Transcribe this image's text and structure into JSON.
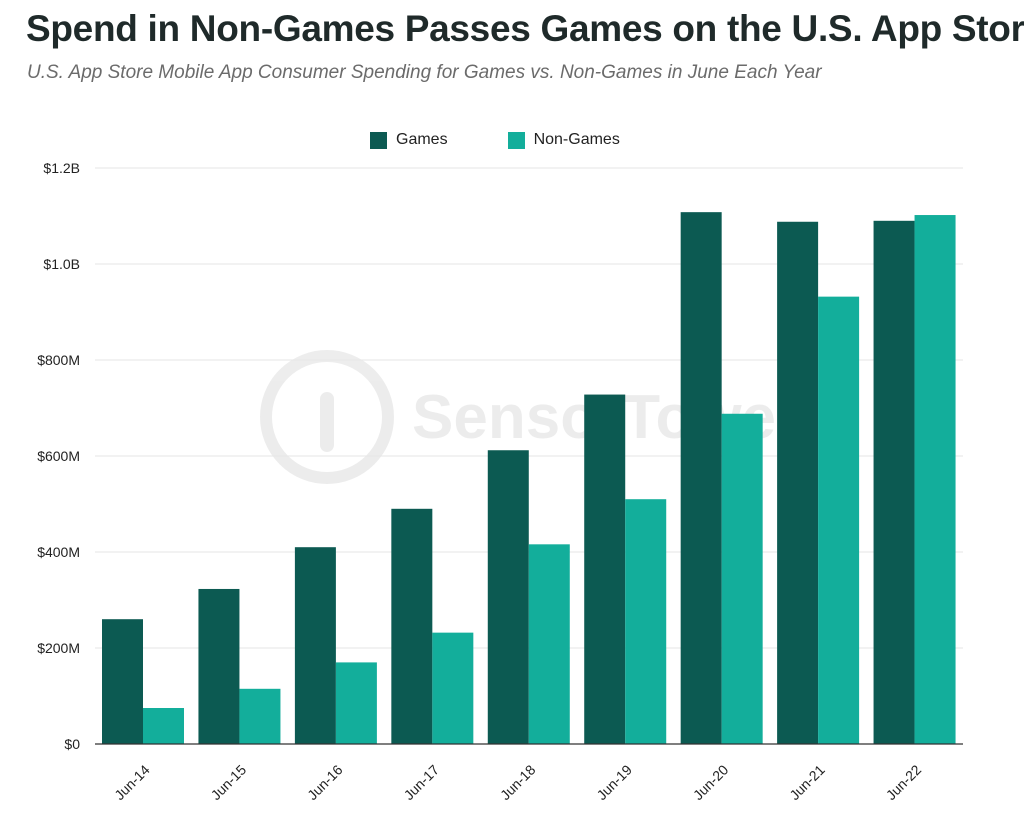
{
  "header": {
    "title": "Spend in Non-Games Passes Games on the U.S. App Store",
    "subtitle": "U.S. App Store Mobile App Consumer Spending for Games vs. Non-Games in June Each Year"
  },
  "watermark": {
    "text": "SensorTower",
    "icon": "sensortower-logo-icon"
  },
  "chart_data": {
    "type": "bar",
    "categories": [
      "Jun-14",
      "Jun-15",
      "Jun-16",
      "Jun-17",
      "Jun-18",
      "Jun-19",
      "Jun-20",
      "Jun-21",
      "Jun-22"
    ],
    "series": [
      {
        "name": "Games",
        "color": "#0c5a52",
        "values": [
          260,
          323,
          410,
          490,
          612,
          728,
          1108,
          1088,
          1090
        ]
      },
      {
        "name": "Non-Games",
        "color": "#13ae9b",
        "values": [
          75,
          115,
          170,
          232,
          416,
          510,
          688,
          932,
          1102
        ]
      }
    ],
    "yticks": [
      {
        "value": 0,
        "label": "$0"
      },
      {
        "value": 200,
        "label": "$200M"
      },
      {
        "value": 400,
        "label": "$400M"
      },
      {
        "value": 600,
        "label": "$600M"
      },
      {
        "value": 800,
        "label": "$800M"
      },
      {
        "value": 1000,
        "label": "$1.0B"
      },
      {
        "value": 1200,
        "label": "$1.2B"
      }
    ],
    "ylim": [
      0,
      1200
    ],
    "grid": true,
    "legend": "top-center",
    "xlabel": "",
    "ylabel": ""
  }
}
